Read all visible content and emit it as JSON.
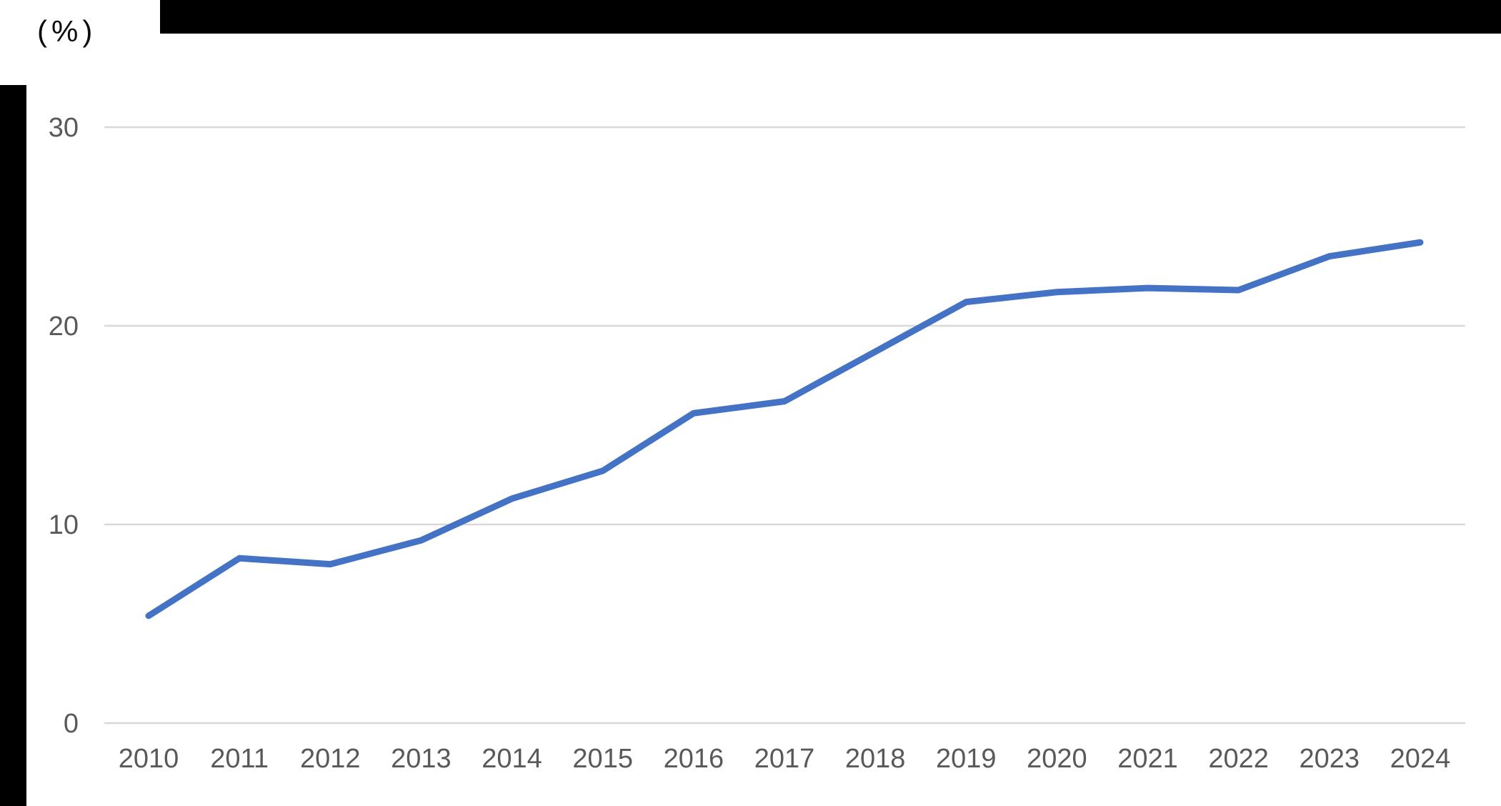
{
  "unit_label": "(%)",
  "redaction_color": "#000000",
  "chart_data": {
    "type": "line",
    "title": "",
    "xlabel": "",
    "ylabel": "(%)",
    "categories": [
      "2010",
      "2011",
      "2012",
      "2013",
      "2014",
      "2015",
      "2016",
      "2017",
      "2018",
      "2019",
      "2020",
      "2021",
      "2022",
      "2023",
      "2024"
    ],
    "series": [
      {
        "name": "",
        "color": "#4472C4",
        "values": [
          5.4,
          8.3,
          8.0,
          9.2,
          11.3,
          12.7,
          15.6,
          16.2,
          18.7,
          21.2,
          21.7,
          21.9,
          21.8,
          23.5,
          24.2
        ]
      }
    ],
    "ylim": [
      0,
      30
    ],
    "yticks": [
      0,
      10,
      20,
      30
    ],
    "grid": true,
    "legend_position": "none",
    "gridline_color": "#D9D9D9",
    "tick_label_color": "#595959"
  }
}
